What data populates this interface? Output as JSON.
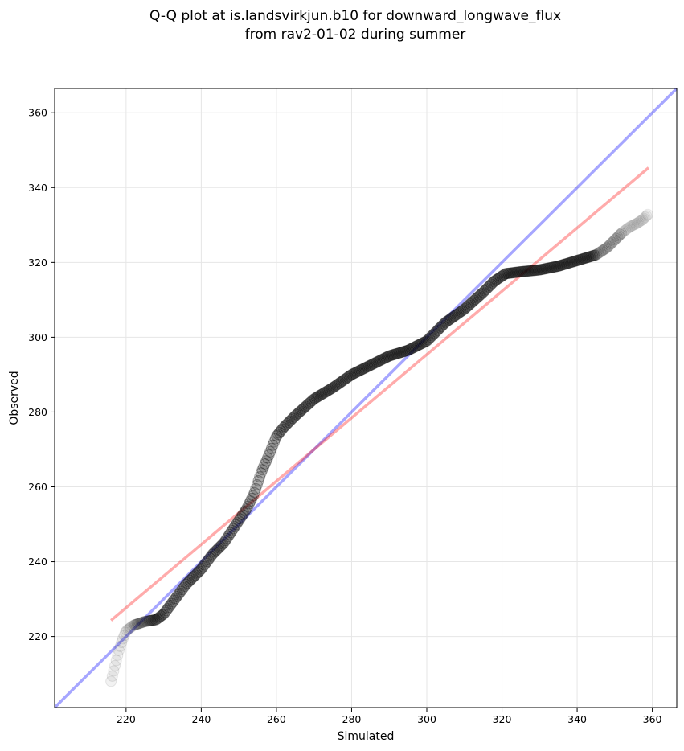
{
  "chart_data": {
    "type": "scatter",
    "title_lines": [
      "Q-Q plot at is.landsvirkjun.b10 for downward_longwave_flux",
      "from rav2-01-02 during summer"
    ],
    "xlabel": "Simulated",
    "ylabel": "Observed",
    "xlim": [
      201,
      366.5
    ],
    "ylim": [
      201,
      366.5
    ],
    "xticks": [
      220,
      240,
      260,
      280,
      300,
      320,
      340,
      360
    ],
    "yticks": [
      220,
      240,
      260,
      280,
      300,
      320,
      340,
      360
    ],
    "grid": true,
    "colors": {
      "points": "#000000",
      "identity_line": "#0000ff",
      "fit_line": "#ff0000",
      "grid": "#e6e6e6"
    },
    "identity_line": {
      "x": [
        201,
        366.5
      ],
      "y": [
        201,
        366.5
      ]
    },
    "fit_line": {
      "x": [
        216,
        359
      ],
      "y": [
        224.3,
        345.3
      ]
    },
    "quantile_curve": {
      "x": [
        216,
        217,
        218,
        219,
        220,
        222,
        225,
        228,
        230,
        233,
        236,
        240,
        243,
        246,
        250,
        252,
        254,
        256,
        258,
        260,
        262,
        265,
        270,
        275,
        280,
        285,
        290,
        295,
        300,
        305,
        310,
        315,
        318,
        321,
        325,
        330,
        335,
        340,
        345,
        348,
        350,
        352,
        354,
        356,
        357.5,
        359
      ],
      "y": [
        208,
        212,
        216,
        219,
        221.5,
        223,
        224,
        224.5,
        226,
        230,
        234,
        238,
        242,
        245,
        251,
        254,
        258,
        264,
        268.5,
        273.5,
        276,
        279,
        283.5,
        286.5,
        290,
        292.5,
        295,
        296.5,
        299,
        304,
        307.5,
        312,
        315,
        317,
        317.5,
        318,
        319,
        320.5,
        322,
        324,
        326,
        328,
        329.5,
        330.5,
        331.5,
        333
      ]
    },
    "point_density": [
      {
        "x_from": 216,
        "x_to": 222,
        "opacity": 0.15
      },
      {
        "x_from": 222,
        "x_to": 226,
        "opacity": 0.3
      },
      {
        "x_from": 226,
        "x_to": 345,
        "opacity": 0.5
      },
      {
        "x_from": 345,
        "x_to": 352,
        "opacity": 0.25
      },
      {
        "x_from": 352,
        "x_to": 359,
        "opacity": 0.12
      }
    ]
  }
}
